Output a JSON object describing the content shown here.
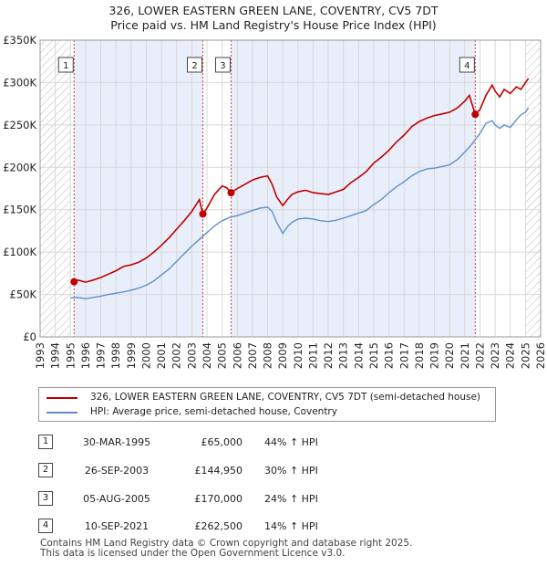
{
  "chart_data": {
    "type": "line",
    "title_line1": "326, LOWER EASTERN GREEN LANE, COVENTRY, CV5 7DT",
    "title_line2": "Price paid vs. HM Land Registry's House Price Index (HPI)",
    "xlim": [
      1993,
      2026
    ],
    "ylim": [
      0,
      350000
    ],
    "y_ticks": [
      0,
      50000,
      100000,
      150000,
      200000,
      250000,
      300000,
      350000
    ],
    "y_tick_labels": [
      "£0",
      "£50K",
      "£100K",
      "£150K",
      "£200K",
      "£250K",
      "£300K",
      "£350K"
    ],
    "x_ticks": [
      1993,
      1994,
      1995,
      1996,
      1997,
      1998,
      1999,
      2000,
      2001,
      2002,
      2003,
      2004,
      2005,
      2006,
      2007,
      2008,
      2009,
      2010,
      2011,
      2012,
      2013,
      2014,
      2015,
      2016,
      2017,
      2018,
      2019,
      2020,
      2021,
      2022,
      2023,
      2024,
      2025,
      2026
    ],
    "hatched_ranges": [
      [
        1993,
        1995.0
      ],
      [
        2025.0,
        2026
      ]
    ],
    "shaded_ranges": [
      [
        1995.24,
        2003.73
      ],
      [
        2005.59,
        2021.69
      ]
    ],
    "series": [
      {
        "name": "326, LOWER EASTERN GREEN LANE, COVENTRY, CV5 7DT (semi-detached house)",
        "color": "#c00000",
        "x": [
          1995.24,
          1995.5,
          1996,
          1996.5,
          1997,
          1997.5,
          1998,
          1998.5,
          1999,
          1999.5,
          2000,
          2000.5,
          2001,
          2001.5,
          2002,
          2002.5,
          2003,
          2003.5,
          2003.73,
          2004,
          2004.5,
          2005,
          2005.3,
          2005.59,
          2006,
          2006.5,
          2007,
          2007.5,
          2008,
          2008.3,
          2008.6,
          2009,
          2009.3,
          2009.6,
          2010,
          2010.5,
          2011,
          2011.5,
          2012,
          2012.5,
          2013,
          2013.5,
          2014,
          2014.5,
          2015,
          2015.5,
          2016,
          2016.5,
          2017,
          2017.5,
          2018,
          2018.5,
          2019,
          2019.5,
          2020,
          2020.5,
          2021,
          2021.3,
          2021.69,
          2022,
          2022.4,
          2022.8,
          2023,
          2023.3,
          2023.6,
          2024,
          2024.4,
          2024.7,
          2025,
          2025.2
        ],
        "values": [
          65000,
          67000,
          64500,
          67000,
          70000,
          74000,
          78000,
          83000,
          85000,
          88000,
          93000,
          100000,
          108000,
          117000,
          127000,
          137000,
          148000,
          162000,
          144950,
          152000,
          168000,
          178000,
          176000,
          170000,
          175000,
          180000,
          185000,
          188000,
          190000,
          180000,
          165000,
          155000,
          162000,
          168000,
          171000,
          173000,
          170000,
          169000,
          168000,
          171000,
          174000,
          182000,
          188000,
          195000,
          205000,
          212000,
          220000,
          230000,
          238000,
          248000,
          254000,
          258000,
          261000,
          263000,
          265000,
          270000,
          278000,
          285000,
          262500,
          268000,
          285000,
          297000,
          290000,
          283000,
          292000,
          287000,
          295000,
          292000,
          300000,
          305000
        ]
      },
      {
        "name": "HPI: Average price, semi-detached house, Coventry",
        "color": "#6090cc",
        "x": [
          1995.0,
          1995.5,
          1996,
          1996.5,
          1997,
          1997.5,
          1998,
          1998.5,
          1999,
          1999.5,
          2000,
          2000.5,
          2001,
          2001.5,
          2002,
          2002.5,
          2003,
          2003.5,
          2004,
          2004.5,
          2005,
          2005.5,
          2006,
          2006.5,
          2007,
          2007.5,
          2008,
          2008.3,
          2008.6,
          2009,
          2009.3,
          2009.6,
          2010,
          2010.5,
          2011,
          2011.5,
          2012,
          2012.5,
          2013,
          2013.5,
          2014,
          2014.5,
          2015,
          2015.5,
          2016,
          2016.5,
          2017,
          2017.5,
          2018,
          2018.5,
          2019,
          2019.5,
          2020,
          2020.5,
          2021,
          2021.5,
          2022,
          2022.4,
          2022.8,
          2023,
          2023.3,
          2023.6,
          2024,
          2024.4,
          2024.7,
          2025,
          2025.2
        ],
        "values": [
          46000,
          46500,
          45000,
          46500,
          48000,
          50000,
          51500,
          53000,
          55000,
          57500,
          61000,
          66000,
          73000,
          80000,
          89000,
          98000,
          107000,
          115000,
          123000,
          131000,
          137000,
          141000,
          143000,
          146000,
          149000,
          152000,
          153000,
          148000,
          135000,
          122000,
          130000,
          135000,
          139000,
          140000,
          139000,
          137000,
          136000,
          137500,
          140000,
          143000,
          146000,
          149000,
          156000,
          162000,
          170000,
          177000,
          183000,
          190000,
          195000,
          198000,
          199000,
          201000,
          203000,
          209000,
          218000,
          228000,
          240000,
          252000,
          255000,
          250000,
          246000,
          250000,
          247000,
          256000,
          262000,
          265000,
          270000
        ]
      }
    ],
    "sales": [
      {
        "label": "1",
        "x": 1995.24,
        "value": 65000
      },
      {
        "label": "2",
        "x": 2003.73,
        "value": 144950
      },
      {
        "label": "3",
        "x": 2005.59,
        "value": 170000
      },
      {
        "label": "4",
        "x": 2021.69,
        "value": 262500
      }
    ]
  },
  "transactions": [
    {
      "num": "1",
      "date": "30-MAR-1995",
      "price": "£65,000",
      "hpi": "44% ↑ HPI"
    },
    {
      "num": "2",
      "date": "26-SEP-2003",
      "price": "£144,950",
      "hpi": "30% ↑ HPI"
    },
    {
      "num": "3",
      "date": "05-AUG-2005",
      "price": "£170,000",
      "hpi": "24% ↑ HPI"
    },
    {
      "num": "4",
      "date": "10-SEP-2021",
      "price": "£262,500",
      "hpi": "14% ↑ HPI"
    }
  ],
  "footer": {
    "line1": "Contains HM Land Registry data © Crown copyright and database right 2025.",
    "line2": "This data is licensed under the Open Government Licence v3.0."
  }
}
